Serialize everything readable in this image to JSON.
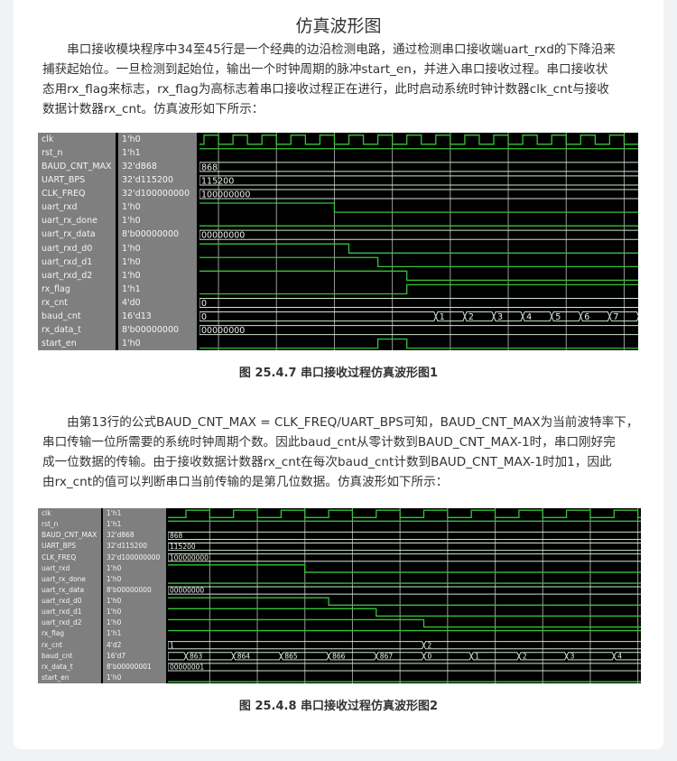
{
  "title": "仿真波形图",
  "paragraph1": [
    "　　串口接收模块程序中34至45行是一个经典的边沿检测电路，通过检测串口接收端uart_rxd的下降沿来",
    "捕获起始位。一旦检测到起始位，输出一个时钟周期的脉冲start_en，并进入串口接收过程。串口接收状",
    "态用rx_flag来标志，rx_flag为高标志着串口接收过程正在进行，此时启动系统时钟计数器clk_cnt与接收",
    "数据计数器rx_cnt。仿真波形如下所示："
  ],
  "paragraph2": [
    "　　由第13行的公式BAUD_CNT_MAX = CLK_FREQ/UART_BPS可知，BAUD_CNT_MAX为当前波特率下，",
    "串口传输一位所需要的系统时钟周期个数。因此baud_cnt从零计数到BAUD_CNT_MAX-1时，串口刚好完",
    "成一位数据的传输。由于接收数据计数器rx_cnt在每次baud_cnt计数到BAUD_CNT_MAX-1时加1，因此",
    "由rx_cnt的值可以判断串口当前传输的是第几位数据。仿真波形如下所示："
  ],
  "colors": {
    "wave_bg": "#000000",
    "signal": "#36c236",
    "bus": "#cfe3cf",
    "grid": "#9a9a9a",
    "panel": "#7f7f7f"
  },
  "waveforms": [
    {
      "caption": "图 25.4.7 串口接收过程仿真波形图1",
      "signals": [
        {
          "name": "clk",
          "value": "1'h0",
          "type": "clock"
        },
        {
          "name": "rst_n",
          "value": "1'h1",
          "type": "bit",
          "init": 1,
          "edges": []
        },
        {
          "name": "BAUD_CNT_MAX",
          "value": "32'd868",
          "type": "bus",
          "segments": [
            {
              "t": -1,
              "label": "868"
            }
          ]
        },
        {
          "name": "UART_BPS",
          "value": "32'd115200",
          "type": "bus",
          "segments": [
            {
              "t": -1,
              "label": "115200"
            }
          ]
        },
        {
          "name": "CLK_FREQ",
          "value": "32'd100000000",
          "type": "bus",
          "segments": [
            {
              "t": -1,
              "label": "100000000"
            }
          ]
        },
        {
          "name": "uart_rxd",
          "value": "1'h0",
          "type": "bit",
          "init": 1,
          "edges": [
            4.5
          ]
        },
        {
          "name": "uart_rx_done",
          "value": "1'h0",
          "type": "bit",
          "init": 0,
          "edges": []
        },
        {
          "name": "uart_rx_data",
          "value": "8'b00000000",
          "type": "bus",
          "segments": [
            {
              "t": -1,
              "label": "00000000"
            }
          ]
        },
        {
          "name": "uart_rxd_d0",
          "value": "1'h0",
          "type": "bit",
          "init": 1,
          "edges": [
            5
          ]
        },
        {
          "name": "uart_rxd_d1",
          "value": "1'h0",
          "type": "bit",
          "init": 1,
          "edges": [
            6
          ]
        },
        {
          "name": "uart_rxd_d2",
          "value": "1'h0",
          "type": "bit",
          "init": 1,
          "edges": [
            7
          ]
        },
        {
          "name": "rx_flag",
          "value": "1'h1",
          "type": "bit",
          "init": 0,
          "edges": [
            7
          ]
        },
        {
          "name": "rx_cnt",
          "value": "4'd0",
          "type": "bus",
          "segments": [
            {
              "t": -1,
              "label": "0"
            }
          ]
        },
        {
          "name": "baud_cnt",
          "value": "16'd13",
          "type": "bus",
          "segments": [
            {
              "t": -1,
              "label": "0"
            },
            {
              "t": 8,
              "label": "1"
            },
            {
              "t": 9,
              "label": "2"
            },
            {
              "t": 10,
              "label": "3"
            },
            {
              "t": 11,
              "label": "4"
            },
            {
              "t": 12,
              "label": "5"
            },
            {
              "t": 13,
              "label": "6"
            },
            {
              "t": 14,
              "label": "7"
            },
            {
              "t": 15,
              "label": ""
            }
          ]
        },
        {
          "name": "rx_data_t",
          "value": "8'b00000000",
          "type": "bus",
          "segments": [
            {
              "t": -1,
              "label": "00000000"
            }
          ]
        },
        {
          "name": "start_en",
          "value": "1'h0",
          "type": "bit",
          "init": 0,
          "edges": [
            6,
            7
          ]
        }
      ]
    },
    {
      "caption": "图 25.4.8 串口接收过程仿真波形图2",
      "signals": [
        {
          "name": "clk",
          "value": "1'h1",
          "type": "clock"
        },
        {
          "name": "rst_n",
          "value": "1'h1",
          "type": "bit",
          "init": 1,
          "edges": []
        },
        {
          "name": "BAUD_CNT_MAX",
          "value": "32'd868",
          "type": "bus",
          "segments": [
            {
              "t": -1,
              "label": "868"
            }
          ]
        },
        {
          "name": "UART_BPS",
          "value": "32'd115200",
          "type": "bus",
          "segments": [
            {
              "t": -1,
              "label": "115200"
            }
          ]
        },
        {
          "name": "CLK_FREQ",
          "value": "32'd100000000",
          "type": "bus",
          "segments": [
            {
              "t": -1,
              "label": "100000000"
            }
          ]
        },
        {
          "name": "uart_rxd",
          "value": "1'h0",
          "type": "bit",
          "init": 1,
          "edges": [
            2.5
          ]
        },
        {
          "name": "uart_rx_done",
          "value": "1'h0",
          "type": "bit",
          "init": 0,
          "edges": []
        },
        {
          "name": "uart_rx_data",
          "value": "8'b00000000",
          "type": "bus",
          "segments": [
            {
              "t": -1,
              "label": "00000000"
            }
          ]
        },
        {
          "name": "uart_rxd_d0",
          "value": "1'h0",
          "type": "bit",
          "init": 1,
          "edges": [
            3
          ]
        },
        {
          "name": "uart_rxd_d1",
          "value": "1'h0",
          "type": "bit",
          "init": 1,
          "edges": [
            4
          ]
        },
        {
          "name": "uart_rxd_d2",
          "value": "1'h0",
          "type": "bit",
          "init": 1,
          "edges": [
            5
          ]
        },
        {
          "name": "rx_flag",
          "value": "1'h1",
          "type": "bit",
          "init": 1,
          "edges": []
        },
        {
          "name": "rx_cnt",
          "value": "4'd2",
          "type": "bus",
          "segments": [
            {
              "t": -1,
              "label": "1"
            },
            {
              "t": 5,
              "label": "2"
            }
          ]
        },
        {
          "name": "baud_cnt",
          "value": "16'd7",
          "type": "bus",
          "segments": [
            {
              "t": -1,
              "label": ""
            },
            {
              "t": 0,
              "label": "863"
            },
            {
              "t": 1,
              "label": "864"
            },
            {
              "t": 2,
              "label": "865"
            },
            {
              "t": 3,
              "label": "866"
            },
            {
              "t": 4,
              "label": "867"
            },
            {
              "t": 5,
              "label": "0"
            },
            {
              "t": 6,
              "label": "1"
            },
            {
              "t": 7,
              "label": "2"
            },
            {
              "t": 8,
              "label": "3"
            },
            {
              "t": 9,
              "label": "4"
            }
          ]
        },
        {
          "name": "rx_data_t",
          "value": "8'b00000001",
          "type": "bus",
          "segments": [
            {
              "t": -1,
              "label": "00000001"
            }
          ]
        },
        {
          "name": "start_en",
          "value": "1'h0",
          "type": "bit",
          "init": 0,
          "edges": []
        }
      ]
    }
  ]
}
